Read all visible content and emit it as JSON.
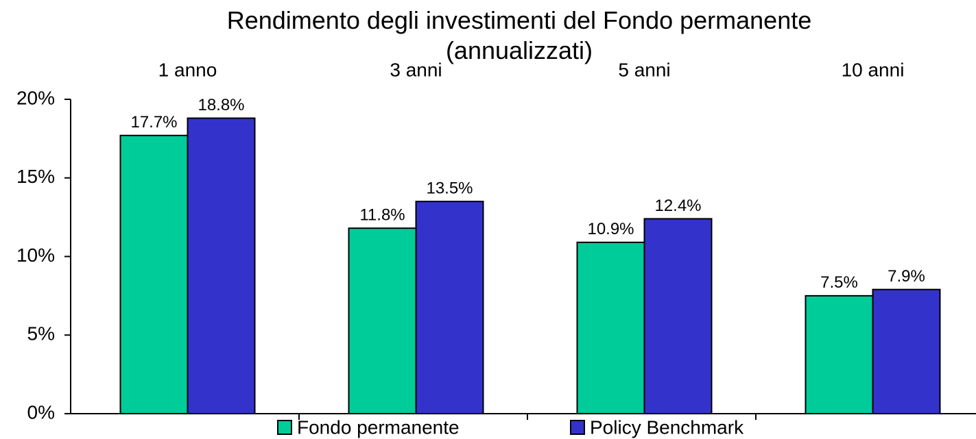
{
  "chart_data": {
    "type": "bar",
    "title": "Rendimento degli investimenti del Fondo permanente (annualizzati)",
    "categories": [
      "1 anno",
      "3 anni",
      "5 anni",
      "10 anni"
    ],
    "series": [
      {
        "name": "Fondo permanente",
        "color": "#00cc99",
        "values": [
          17.7,
          11.8,
          10.9,
          7.5
        ],
        "value_labels": [
          "17.7%",
          "11.8%",
          "10.9%",
          "7.5%"
        ]
      },
      {
        "name": "Policy Benchmark",
        "color": "#3333cc",
        "values": [
          18.8,
          13.5,
          12.4,
          7.9
        ],
        "value_labels": [
          "18.8%",
          "13.5%",
          "12.4%",
          "7.9%"
        ]
      }
    ],
    "ylim": [
      0,
      20
    ],
    "yticks": [
      {
        "value": 0,
        "label": "0%"
      },
      {
        "value": 5,
        "label": "5%"
      },
      {
        "value": 10,
        "label": "10%"
      },
      {
        "value": 15,
        "label": "15%"
      },
      {
        "value": 20,
        "label": "20%"
      }
    ],
    "grid": false,
    "legend": "bottom"
  }
}
